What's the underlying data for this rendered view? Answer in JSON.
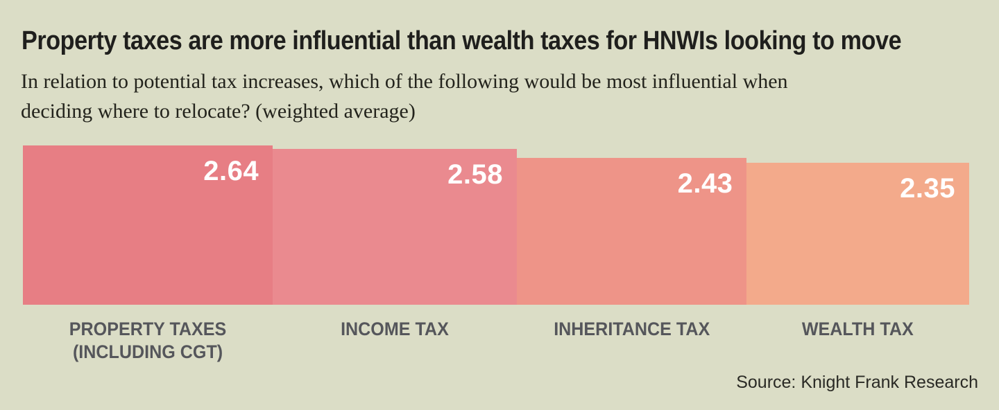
{
  "header": {
    "title": "Property taxes are more influential than wealth taxes for HNWIs looking to move",
    "subtitle": "In relation to potential tax increases, which of the following would be most influential when\ndeciding where to relocate? (weighted average)"
  },
  "chart_data": {
    "type": "bar",
    "title": "Property taxes are more influential than wealth taxes for HNWIs looking to move",
    "subtitle": "In relation to potential tax increases, which of the following would be most influential when deciding where to relocate? (weighted average)",
    "categories": [
      "PROPERTY TAXES\n(INCLUDING CGT)",
      "INCOME TAX",
      "INHERITANCE TAX",
      "WEALTH TAX"
    ],
    "values": [
      2.64,
      2.58,
      2.43,
      2.35
    ],
    "value_labels": [
      "2.64",
      "2.58",
      "2.43",
      "2.35"
    ],
    "xlabel": "",
    "ylabel": "",
    "ylim": [
      0,
      2.64
    ],
    "grid": false,
    "legend": false,
    "bar_colors": [
      "#E77E84",
      "#EA8A8F",
      "#EE9488",
      "#F3AA8B"
    ],
    "value_label_color": "#FFFFFF",
    "category_label_color": "#55565B",
    "background_color": "#DBDDC6",
    "layout_note": "bars touch each other; both bar width and bar height are proportional to value; value labels sit inside top-right of each bar"
  },
  "footer": {
    "source": "Source: Knight Frank Research"
  }
}
